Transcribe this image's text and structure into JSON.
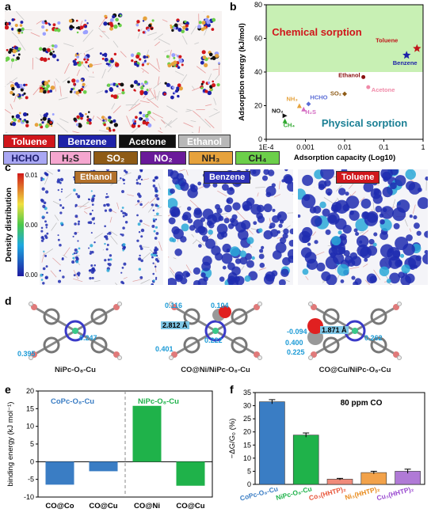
{
  "panels": {
    "a": "a",
    "b": "b",
    "c": "c",
    "d": "d",
    "e": "e",
    "f": "f"
  },
  "legend_a": [
    {
      "label": "Toluene",
      "bg": "#d0161b",
      "fg": "#ffffff"
    },
    {
      "label": "Benzene",
      "bg": "#1e22a8",
      "fg": "#ffffff"
    },
    {
      "label": "Acetone",
      "bg": "#111111",
      "fg": "#ffffff"
    },
    {
      "label": "Ethanol",
      "bg": "#b8b8b8",
      "fg": "#ffffff"
    },
    {
      "label": "HCHO",
      "bg": "#a9a7f3",
      "fg": "#1a1a6a"
    },
    {
      "label": "H₂S",
      "bg": "#f5a6cf",
      "fg": "#222222"
    },
    {
      "label": "SO₂",
      "bg": "#8e5b16",
      "fg": "#ffffff"
    },
    {
      "label": "NO₂",
      "bg": "#6a1a9a",
      "fg": "#ffffff"
    },
    {
      "label": "NH₃",
      "bg": "#e6a23c",
      "fg": "#222222"
    },
    {
      "label": "CH₄",
      "bg": "#6ccf4a",
      "fg": "#222222"
    }
  ],
  "panel_c": {
    "titles": [
      {
        "label": "Ethanol",
        "bg": "#b3712a"
      },
      {
        "label": "Benzene",
        "bg": "#2b2fb6"
      },
      {
        "label": "Toluene",
        "bg": "#d0161b"
      }
    ],
    "colorbar_label": "Density distribution",
    "ticks": [
      "0.010",
      "0.005",
      "0.000"
    ]
  },
  "panel_d": {
    "structures": [
      {
        "name": "NiPc-O₈-Cu",
        "labels": [
          "0.247",
          "0.395"
        ]
      },
      {
        "name": "CO@Ni/NiPc-O₈-Cu",
        "labels": [
          "0.116",
          "0.104",
          "0.222",
          "0.401"
        ],
        "box": "2.812 Å"
      },
      {
        "name": "CO@Cu/NiPc-O₈-Cu",
        "labels": [
          "-0.094",
          "0.400",
          "0.225",
          "0.262"
        ],
        "box": "1.871 Å"
      }
    ]
  },
  "chart_data": [
    {
      "panel": "b",
      "type": "scatter",
      "xlabel": "Adsorption capacity (Log10)",
      "ylabel": "Adsorption energy (kJ/mol)",
      "xscale": "log",
      "xlim": [
        0.0001,
        1
      ],
      "ylim": [
        0,
        80
      ],
      "xticks": [
        "1E-4",
        "0.001",
        "0.01",
        "0.1",
        "1"
      ],
      "yticks": [
        0,
        20,
        40,
        60,
        80
      ],
      "regions": [
        {
          "label": "Chemical sorption",
          "ymin": 40,
          "ymax": 80,
          "color": "#c8f0b4",
          "text_color": "#d0161b"
        },
        {
          "label": "Physical sorption",
          "ymin": 0,
          "ymax": 40,
          "color": "#ffffff",
          "text_color": "#1a7f94"
        }
      ],
      "points": [
        {
          "name": "Toluene",
          "x": 0.7,
          "y": 54,
          "color": "#c0151a",
          "marker": "star"
        },
        {
          "name": "Benzene",
          "x": 0.38,
          "y": 50,
          "color": "#1e22a8",
          "marker": "star"
        },
        {
          "name": "Ethanol",
          "x": 0.03,
          "y": 37,
          "color": "#8a1010",
          "marker": "circle"
        },
        {
          "name": "Acetone",
          "x": 0.04,
          "y": 31,
          "color": "#f08aa8",
          "marker": "circle"
        },
        {
          "name": "SO₂",
          "x": 0.01,
          "y": 27,
          "color": "#8e5b16",
          "marker": "diamond"
        },
        {
          "name": "HCHO",
          "x": 0.0012,
          "y": 21,
          "color": "#5a6cd6",
          "marker": "diamond"
        },
        {
          "name": "NH₃",
          "x": 0.0007,
          "y": 20,
          "color": "#e6a23c",
          "marker": "triangle"
        },
        {
          "name": "H₂S",
          "x": 0.0009,
          "y": 18,
          "color": "#d46bc2",
          "marker": "triangle"
        },
        {
          "name": "NO₂",
          "x": 0.0003,
          "y": 14,
          "color": "#111111",
          "marker": "triangle-right"
        },
        {
          "name": "CH₄",
          "x": 0.0003,
          "y": 11,
          "color": "#2ea82e",
          "marker": "triangle"
        }
      ]
    },
    {
      "panel": "e",
      "type": "bar",
      "ylabel": "binding energy (kJ mol⁻¹)",
      "ylim": [
        -10,
        20
      ],
      "yticks": [
        -10,
        -5,
        0,
        5,
        10,
        15,
        20
      ],
      "groups": [
        {
          "label": "CoPc-O₈-Cu",
          "color": "#3a7dc4"
        },
        {
          "label": "NiPc-O₈-Cu",
          "color": "#1fb24a"
        }
      ],
      "categories": [
        "CO@Co",
        "CO@Cu",
        "CO@Ni",
        "CO@Cu"
      ],
      "values": [
        -6.5,
        -2.7,
        15.8,
        -6.8
      ],
      "colors": [
        "#3a7dc4",
        "#3a7dc4",
        "#1fb24a",
        "#1fb24a"
      ]
    },
    {
      "panel": "f",
      "type": "bar",
      "title": "80 ppm CO",
      "ylabel": "−ΔG/G₀ (%)",
      "ylim": [
        0,
        35
      ],
      "yticks": [
        0,
        5,
        10,
        15,
        20,
        25,
        30,
        35
      ],
      "categories": [
        "CoPc-O₈-Cu",
        "NiPc-O₈-Cu",
        "Co₃(HHTP)₂",
        "Ni₃(HHTP)₂",
        "Cu₃(HHTP)₂"
      ],
      "values": [
        31.5,
        18.8,
        2.0,
        4.5,
        5.0
      ],
      "errors": [
        0.8,
        0.8,
        0.3,
        0.5,
        0.8
      ],
      "colors": [
        "#3a7dc4",
        "#1fb24a",
        "#f08a7a",
        "#f2a24a",
        "#b07ad6"
      ],
      "label_colors": [
        "#3a7dc4",
        "#1fb24a",
        "#e8563a",
        "#e88a1a",
        "#9a4ad0"
      ]
    }
  ]
}
